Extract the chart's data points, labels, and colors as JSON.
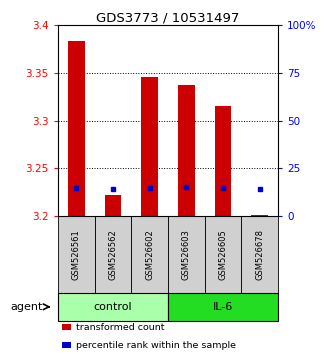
{
  "title": "GDS3773 / 10531497",
  "samples": [
    "GSM526561",
    "GSM526562",
    "GSM526602",
    "GSM526603",
    "GSM526605",
    "GSM526678"
  ],
  "red_values": [
    3.383,
    3.222,
    3.345,
    3.337,
    3.315,
    3.201
  ],
  "blue_values_pct": [
    15.0,
    14.5,
    15.0,
    15.5,
    15.0,
    14.5
  ],
  "ylim_left": [
    3.2,
    3.4
  ],
  "ylim_right": [
    0,
    100
  ],
  "yticks_left": [
    3.2,
    3.25,
    3.3,
    3.35,
    3.4
  ],
  "yticks_right": [
    0,
    25,
    50,
    75,
    100
  ],
  "ytick_labels_right": [
    "0",
    "25",
    "50",
    "75",
    "100%"
  ],
  "grid_lines": [
    3.25,
    3.3,
    3.35
  ],
  "groups": [
    {
      "label": "control",
      "indices": [
        0,
        1,
        2
      ],
      "color": "#aaffaa"
    },
    {
      "label": "IL-6",
      "indices": [
        3,
        4,
        5
      ],
      "color": "#22dd22"
    }
  ],
  "bar_color": "#CC0000",
  "blue_color": "#0000CC",
  "bar_width": 0.45,
  "sample_bg_color": "#D0D0D0",
  "agent_label": "agent",
  "legend_items": [
    {
      "color": "#CC0000",
      "label": "transformed count"
    },
    {
      "color": "#0000CC",
      "label": "percentile rank within the sample"
    }
  ]
}
